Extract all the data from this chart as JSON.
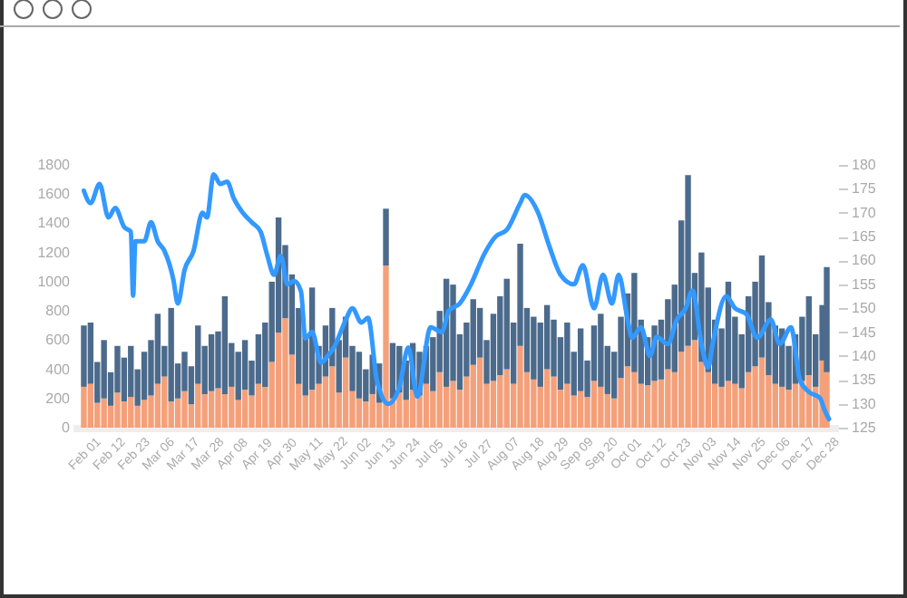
{
  "chart_data": {
    "type": "bar",
    "stacked": true,
    "x": [
      "--02-01",
      "--02-04",
      "--02-07",
      "--02-10",
      "--02-13",
      "--02-16",
      "--02-19",
      "--02-22",
      "--02-25",
      "--02-28",
      "--03-03",
      "--03-06",
      "--03-09",
      "--03-12",
      "--03-15",
      "--03-18",
      "--03-21",
      "--03-24",
      "--03-27",
      "--03-30",
      "--04-02",
      "--04-05",
      "--04-08",
      "--04-11",
      "--04-14",
      "--04-17",
      "--04-20",
      "--04-23",
      "--04-26",
      "--04-29",
      "--05-02",
      "--05-05",
      "--05-08",
      "--05-11",
      "--05-14",
      "--05-17",
      "--05-20",
      "--05-23",
      "--05-26",
      "--05-29",
      "--06-01",
      "--06-04",
      "--06-07",
      "--06-10",
      "--06-13",
      "--06-16",
      "--06-19",
      "--06-22",
      "--06-25",
      "--06-28",
      "--07-01",
      "--07-04",
      "--07-07",
      "--07-10",
      "--07-13",
      "--07-16",
      "--07-19",
      "--07-22",
      "--07-25",
      "--07-28",
      "--07-31",
      "--08-03",
      "--08-06",
      "--08-09",
      "--08-12",
      "--08-15",
      "--08-18",
      "--08-21",
      "--08-24",
      "--08-27",
      "--08-30",
      "--09-02",
      "--09-05",
      "--09-08",
      "--09-11",
      "--09-14",
      "--09-17",
      "--09-20",
      "--09-23",
      "--09-26",
      "--09-29",
      "--10-02",
      "--10-05",
      "--10-08",
      "--10-11",
      "--10-14",
      "--10-17",
      "--10-20",
      "--10-23",
      "--10-26",
      "--10-29",
      "--11-01",
      "--11-04",
      "--11-07",
      "--11-10",
      "--11-13",
      "--11-16",
      "--11-19",
      "--11-22",
      "--11-25",
      "--11-28",
      "--12-01",
      "--12-04",
      "--12-07",
      "--12-10",
      "--12-13",
      "--12-16",
      "--12-19",
      "--12-22",
      "--12-25",
      "--12-28",
      "--12-30"
    ],
    "series": [
      {
        "color": "#f4a07a",
        "values": [
          280,
          300,
          170,
          200,
          150,
          240,
          180,
          210,
          150,
          190,
          220,
          300,
          350,
          180,
          200,
          250,
          160,
          300,
          230,
          250,
          270,
          230,
          280,
          190,
          260,
          220,
          300,
          280,
          450,
          650,
          750,
          500,
          300,
          220,
          260,
          300,
          350,
          420,
          240,
          480,
          250,
          200,
          180,
          230,
          170,
          1110,
          200,
          240,
          190,
          260,
          220,
          300,
          250,
          380,
          280,
          320,
          260,
          350,
          430,
          480,
          300,
          320,
          360,
          400,
          300,
          560,
          380,
          330,
          280,
          400,
          350,
          260,
          300,
          220,
          250,
          210,
          320,
          280,
          230,
          200,
          340,
          420,
          380,
          300,
          290,
          320,
          330,
          400,
          380,
          520,
          560,
          600,
          450,
          380,
          300,
          280,
          320,
          300,
          270,
          380,
          420,
          480,
          360,
          300,
          280,
          260,
          300,
          320,
          360,
          280,
          460,
          380
        ]
      },
      {
        "color": "#4c6b8c",
        "values": [
          420,
          420,
          280,
          400,
          230,
          320,
          300,
          350,
          250,
          330,
          380,
          480,
          210,
          640,
          240,
          270,
          260,
          400,
          330,
          390,
          390,
          670,
          300,
          330,
          340,
          240,
          340,
          440,
          550,
          790,
          500,
          550,
          520,
          420,
          700,
          260,
          350,
          400,
          360,
          280,
          310,
          320,
          220,
          270,
          270,
          390,
          380,
          320,
          270,
          320,
          300,
          260,
          370,
          420,
          740,
          660,
          380,
          370,
          450,
          340,
          300,
          460,
          540,
          620,
          420,
          700,
          440,
          430,
          440,
          440,
          390,
          360,
          420,
          300,
          430,
          250,
          380,
          500,
          330,
          320,
          420,
          500,
          680,
          440,
          330,
          380,
          410,
          480,
          600,
          900,
          1170,
          460,
          750,
          580,
          440,
          400,
          680,
          460,
          370,
          520,
          580,
          700,
          500,
          400,
          400,
          300,
          340,
          440,
          540,
          360,
          380,
          720
        ]
      },
      {
        "type": "line",
        "axis": "y2",
        "color": "#3399ff",
        "x": [
          "--02-01",
          "--02-04",
          "--02-08",
          "--02-12",
          "--02-15",
          "--02-19",
          "--02-22",
          "--02-23",
          "--02-24",
          "--02-28",
          "--03-03",
          "--03-06",
          "--03-09",
          "--03-13",
          "--03-15",
          "--03-18",
          "--03-22",
          "--03-26",
          "--03-28",
          "--03-31",
          "--04-03",
          "--04-06",
          "--04-09",
          "--04-13",
          "--04-17",
          "--04-21",
          "--04-24",
          "--04-27",
          "--04-30",
          "--05-03",
          "--05-06",
          "--05-09",
          "--05-11",
          "--05-14",
          "--05-18",
          "--05-21",
          "--05-24",
          "--05-29",
          "--06-01",
          "--06-05",
          "--06-08",
          "--06-12",
          "--06-17",
          "--06-22",
          "--06-26",
          "--06-30",
          "--07-06",
          "--07-11",
          "--07-14",
          "--07-19",
          "--07-24",
          "--07-30",
          "--08-04",
          "--08-09",
          "--08-15",
          "--08-17",
          "--08-23",
          "--08-28",
          "--09-02",
          "--09-08",
          "--09-12",
          "--09-17",
          "--09-21",
          "--09-25",
          "--09-28",
          "--10-02",
          "--10-04",
          "--10-08",
          "--10-12",
          "--10-15",
          "--10-20",
          "--10-24",
          "--10-28",
          "--10-31",
          "--11-04",
          "--11-07",
          "--11-09",
          "--11-15",
          "--11-19",
          "--11-24",
          "--11-29",
          "--12-05",
          "--12-09",
          "--12-14",
          "--12-18",
          "--12-22",
          "--12-27",
          "--12-29",
          "--12-31"
        ],
        "values": [
          174.6,
          172,
          176,
          169,
          171,
          167,
          166,
          152.6,
          164,
          164,
          168,
          164,
          162,
          156,
          151,
          158,
          162,
          170,
          169,
          178,
          176,
          176.5,
          173,
          170,
          168,
          166,
          161,
          157,
          161,
          155,
          155.7,
          153.6,
          143.7,
          145,
          138.6,
          140,
          142,
          147.5,
          150,
          147,
          148,
          134.8,
          130,
          133.5,
          141.8,
          131.5,
          146,
          145,
          149.4,
          151,
          155,
          161.4,
          165,
          166.4,
          172,
          173.7,
          170,
          163,
          157,
          155,
          159,
          150,
          157,
          151,
          157,
          147.6,
          143.8,
          146,
          140,
          144,
          142.5,
          147.6,
          150,
          153.7,
          142.5,
          137.6,
          142.5,
          152.5,
          150,
          148.8,
          143.8,
          147.6,
          142.5,
          146,
          135,
          132.5,
          131.2,
          128.7,
          126.8
        ]
      }
    ],
    "xlim": [
      "--01-31",
      "--12-31"
    ],
    "xticks": [
      {
        "value": "--02-01",
        "label": "Feb 01"
      },
      {
        "value": "--02-12",
        "label": "Feb 12"
      },
      {
        "value": "--02-23",
        "label": "Feb 23"
      },
      {
        "value": "--03-06",
        "label": "Mar 06"
      },
      {
        "value": "--03-17",
        "label": "Mar 17"
      },
      {
        "value": "--03-28",
        "label": "Mar 28"
      },
      {
        "value": "--04-08",
        "label": "Apr 08"
      },
      {
        "value": "--04-19",
        "label": "Apr 19"
      },
      {
        "value": "--04-30",
        "label": "Apr 30"
      },
      {
        "value": "--05-11",
        "label": "May 11"
      },
      {
        "value": "--05-22",
        "label": "May 22"
      },
      {
        "value": "--06-02",
        "label": "Jun 02"
      },
      {
        "value": "--06-13",
        "label": "Jun 13"
      },
      {
        "value": "--06-24",
        "label": "Jun 24"
      },
      {
        "value": "--07-05",
        "label": "Jul 05"
      },
      {
        "value": "--07-16",
        "label": "Jul 16"
      },
      {
        "value": "--07-27",
        "label": "Jul 27"
      },
      {
        "value": "--08-07",
        "label": "Aug 07"
      },
      {
        "value": "--08-18",
        "label": "Aug 18"
      },
      {
        "value": "--08-29",
        "label": "Aug 29"
      },
      {
        "value": "--09-09",
        "label": "Sep 09"
      },
      {
        "value": "--09-20",
        "label": "Sep 20"
      },
      {
        "value": "--10-01",
        "label": "Oct 01"
      },
      {
        "value": "--10-12",
        "label": "Oct 12"
      },
      {
        "value": "--10-23",
        "label": "Oct 23"
      },
      {
        "value": "--11-03",
        "label": "Nov 03"
      },
      {
        "value": "--11-14",
        "label": "Nov 14"
      },
      {
        "value": "--11-25",
        "label": "Nov 25"
      },
      {
        "value": "--12-06",
        "label": "Dec 06"
      },
      {
        "value": "--12-17",
        "label": "Dec 17"
      },
      {
        "value": "--12-28",
        "label": "Dec 28"
      }
    ],
    "ylim": [
      0,
      1800
    ],
    "yticks": [
      0,
      200,
      400,
      600,
      800,
      1000,
      1200,
      1400,
      1600,
      1800
    ],
    "y2lim": [
      125,
      180
    ],
    "y2ticks": [
      125,
      130,
      135,
      140,
      145,
      150,
      155,
      160,
      165,
      170,
      175,
      180
    ],
    "grid": false,
    "legend": false,
    "marker": "none",
    "line_style": "solid"
  }
}
